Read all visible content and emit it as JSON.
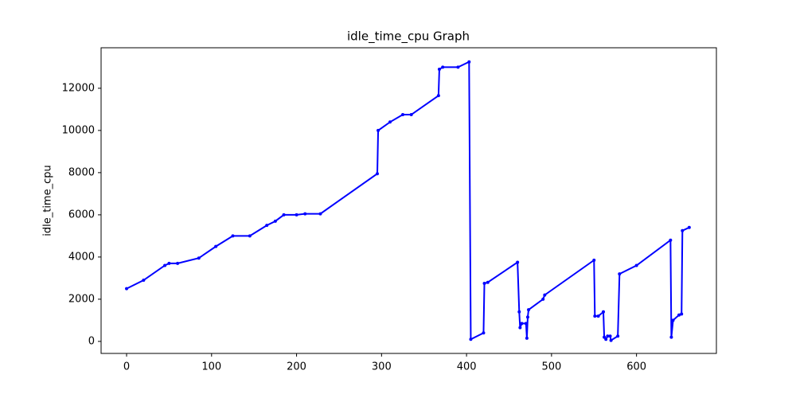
{
  "chart_data": {
    "type": "line",
    "title": "idle_time_cpu Graph",
    "ylabel": "idle_time_cpu",
    "x": [
      0,
      20,
      45,
      50,
      60,
      85,
      105,
      125,
      145,
      165,
      175,
      185,
      200,
      210,
      228,
      295,
      296,
      310,
      325,
      335,
      367,
      368,
      372,
      390,
      403,
      405,
      420,
      421,
      425,
      460,
      462,
      463,
      465,
      470,
      471,
      472,
      473,
      490,
      492,
      550,
      551,
      555,
      561,
      562,
      564,
      566,
      569,
      570,
      578,
      580,
      600,
      640,
      641,
      643,
      650,
      653,
      654,
      662
    ],
    "series": [
      {
        "name": "idle_time_cpu",
        "color": "#0000ff",
        "values": [
          2500,
          2900,
          3600,
          3700,
          3700,
          3950,
          4500,
          5000,
          5000,
          5500,
          5700,
          6000,
          6000,
          6050,
          6050,
          7950,
          10000,
          10400,
          10750,
          10750,
          11650,
          12900,
          13000,
          13000,
          13250,
          100,
          400,
          2750,
          2800,
          3750,
          1400,
          650,
          850,
          850,
          150,
          1150,
          1500,
          2000,
          2200,
          3850,
          1200,
          1200,
          1400,
          200,
          100,
          250,
          250,
          50,
          250,
          3200,
          3600,
          4800,
          200,
          1000,
          1250,
          1300,
          5250,
          5400
        ]
      }
    ],
    "xlim": [
      -30,
      694
    ],
    "ylim": [
      -570,
      13920
    ],
    "xticks": [
      0,
      100,
      200,
      300,
      400,
      500,
      600
    ],
    "yticks": [
      0,
      2000,
      4000,
      6000,
      8000,
      10000,
      12000
    ]
  }
}
